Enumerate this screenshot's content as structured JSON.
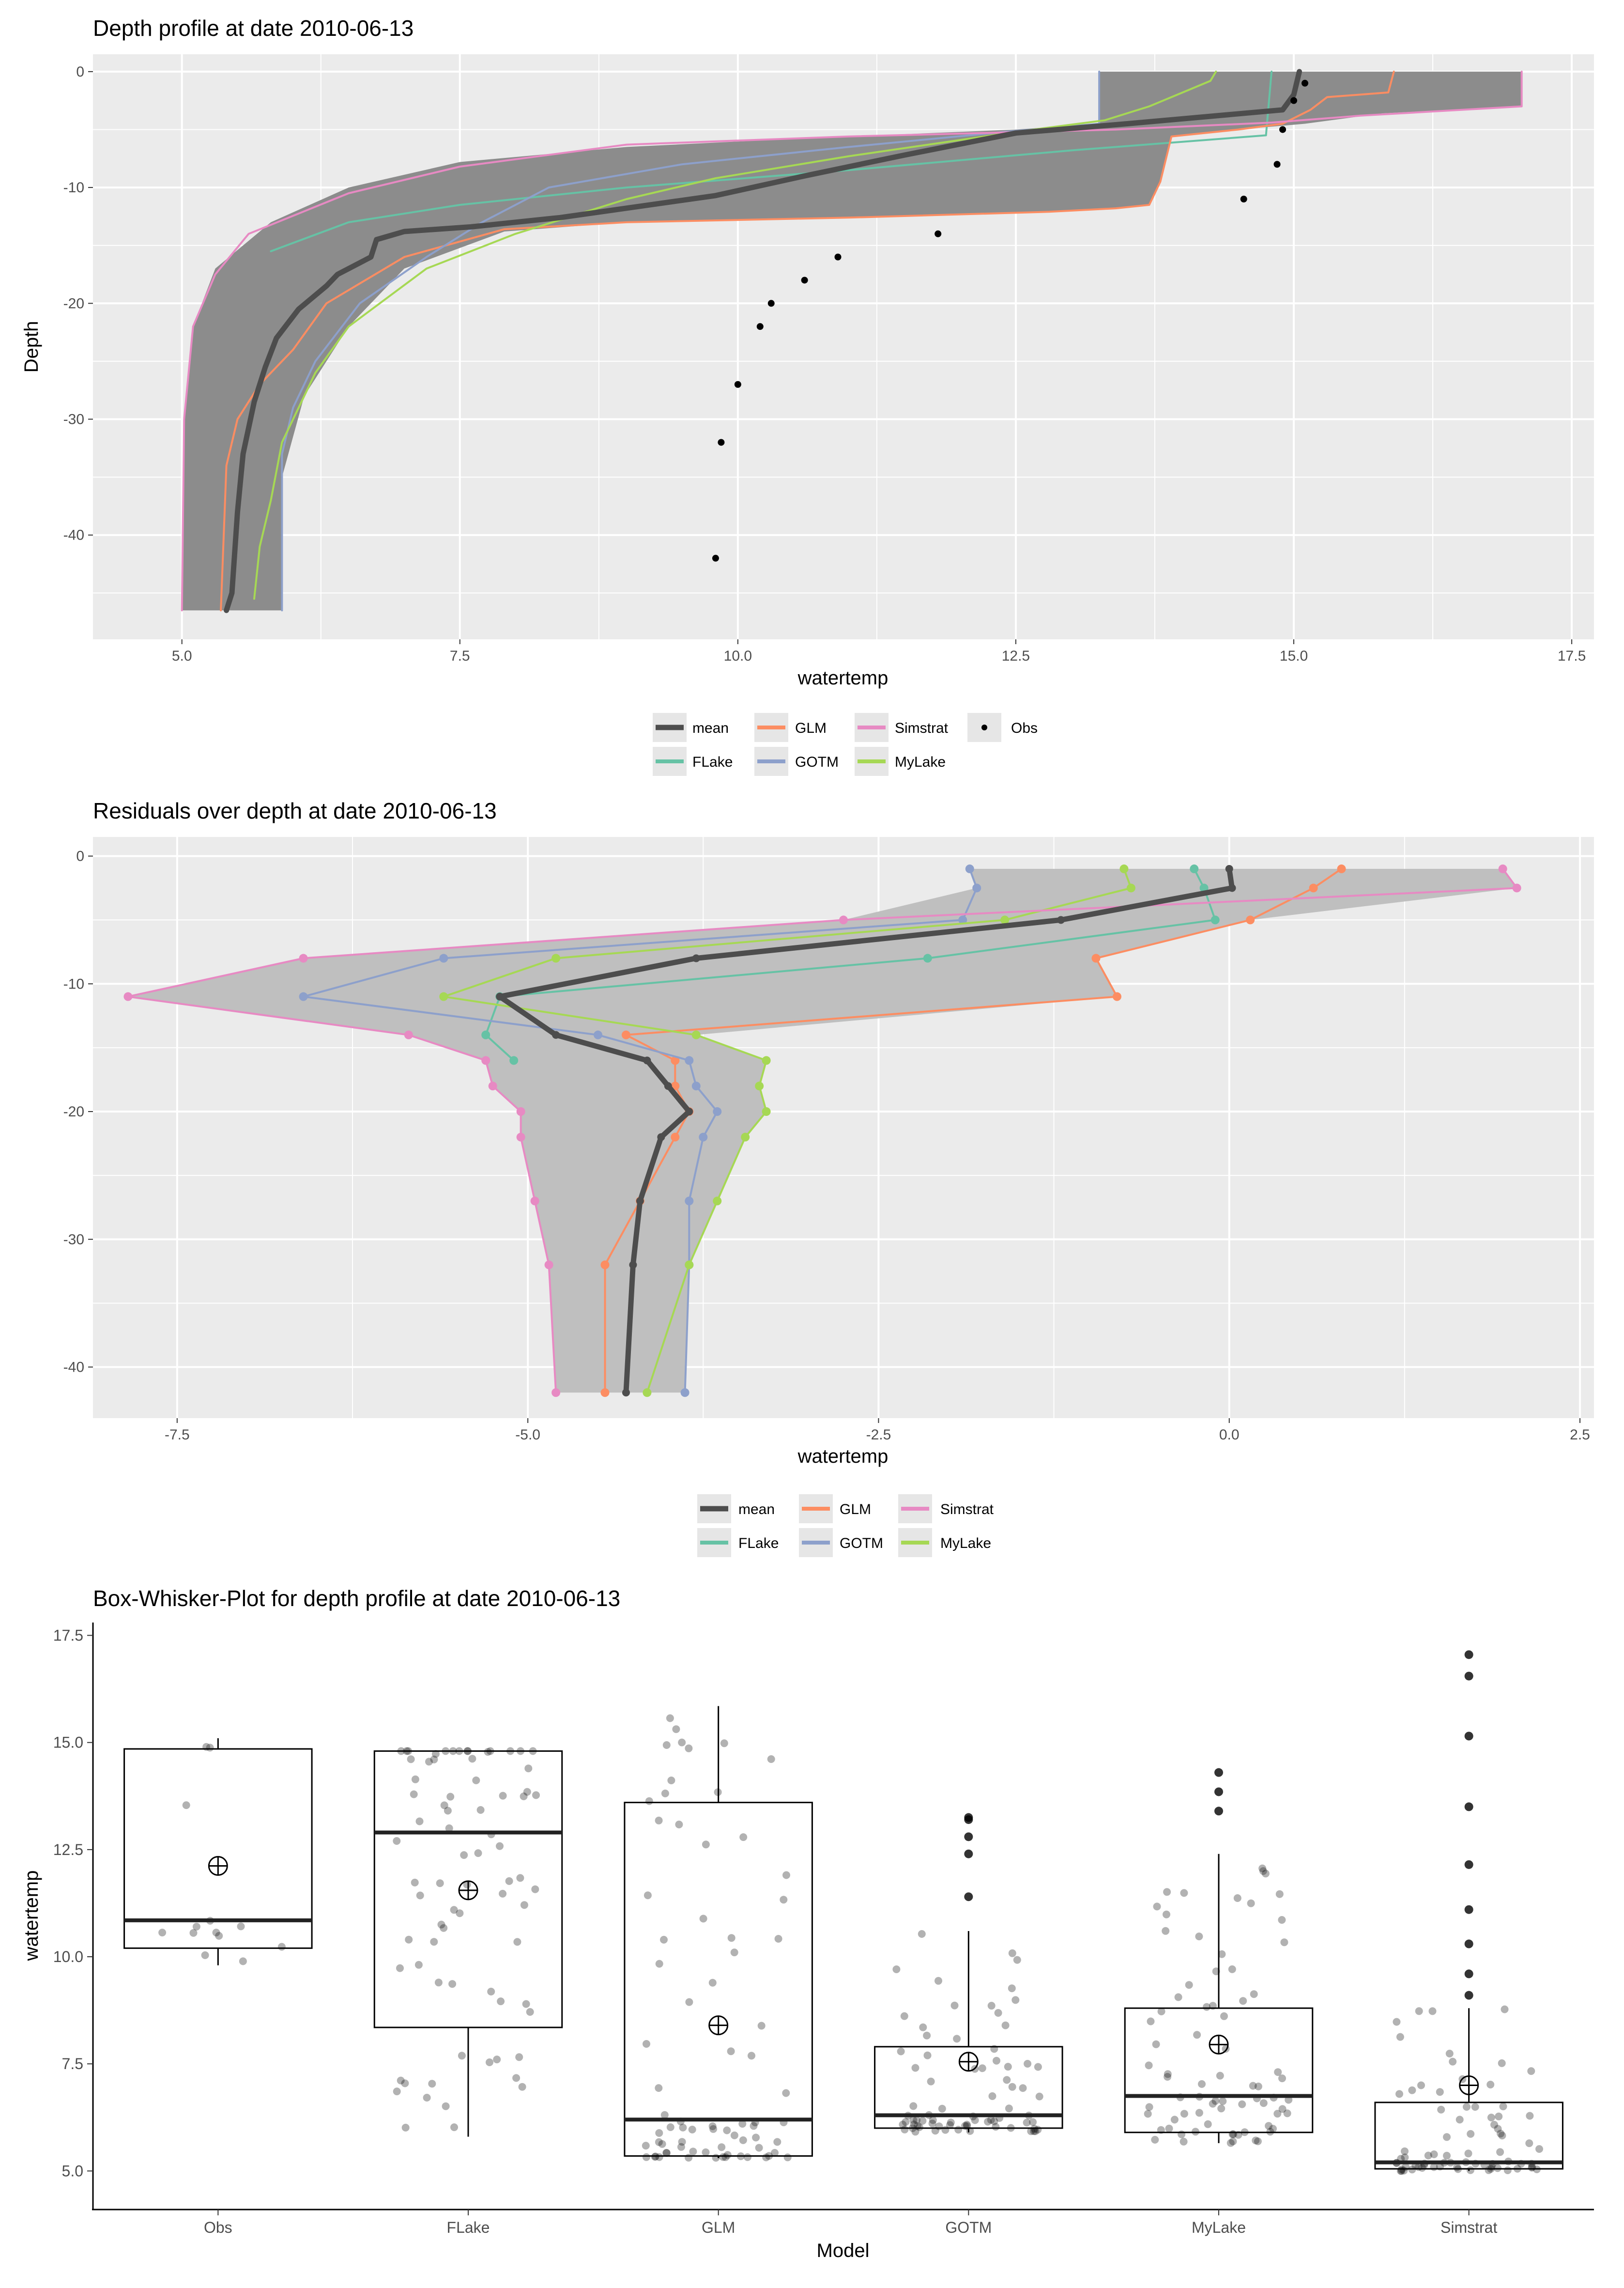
{
  "colors": {
    "mean": "#4d4d4d",
    "FLake": "#66c2a5",
    "GLM": "#fc8d62",
    "GOTM": "#8da0cb",
    "Simstrat": "#e78ac3",
    "MyLake": "#a6d854",
    "Obs": "#000000",
    "panel": "#ebebeb",
    "band": "#8c8c8c"
  },
  "legend1": {
    "mean": "mean",
    "GLM": "GLM",
    "Simstrat": "Simstrat",
    "Obs": "Obs",
    "FLake": "FLake",
    "GOTM": "GOTM",
    "MyLake": "MyLake"
  },
  "legend2": {
    "mean": "mean",
    "GLM": "GLM",
    "Simstrat": "Simstrat",
    "FLake": "FLake",
    "GOTM": "GOTM",
    "MyLake": "MyLake"
  },
  "chart_data": [
    {
      "type": "line",
      "title": "Depth profile at date 2010-06-13",
      "xlabel": "watertemp",
      "ylabel": "Depth",
      "xlim": [
        4.2,
        17.7
      ],
      "ylim": [
        -49,
        1.5
      ],
      "xticks": [
        5.0,
        7.5,
        10.0,
        12.5,
        15.0,
        17.5
      ],
      "xtick_labels": [
        "5.0",
        "7.5",
        "10.0",
        "12.5",
        "15.0",
        "17.5"
      ],
      "yticks": [
        0,
        -10,
        -20,
        -30,
        -40
      ],
      "ytick_labels": [
        "0",
        "-10",
        "-20",
        "-30",
        "-40"
      ],
      "band_min": [
        [
          13.25,
          0
        ],
        [
          13.25,
          -4.5
        ],
        [
          12.5,
          -5
        ],
        [
          10.5,
          -5.8
        ],
        [
          9,
          -6.5
        ],
        [
          7.5,
          -7.8
        ],
        [
          6.5,
          -10
        ],
        [
          5.8,
          -13
        ],
        [
          5.3,
          -17
        ],
        [
          5.1,
          -22
        ],
        [
          5.02,
          -30
        ],
        [
          5,
          -46.5
        ]
      ],
      "band_max": [
        [
          17.05,
          0
        ],
        [
          17.05,
          -3
        ],
        [
          15.8,
          -3.6
        ],
        [
          15.1,
          -4.5
        ],
        [
          14.5,
          -5
        ],
        [
          13.9,
          -5.6
        ],
        [
          13.8,
          -9.5
        ],
        [
          13.7,
          -11.5
        ],
        [
          13.4,
          -11.8
        ],
        [
          12.8,
          -12.1
        ],
        [
          11,
          -12.6
        ],
        [
          9,
          -13
        ],
        [
          7.9,
          -13.8
        ],
        [
          7,
          -17
        ],
        [
          6.5,
          -22
        ],
        [
          6.1,
          -28
        ],
        [
          5.9,
          -35
        ],
        [
          5.9,
          -46.5
        ]
      ],
      "series": [
        {
          "name": "mean",
          "points": [
            [
              15.05,
              0
            ],
            [
              15.0,
              -2
            ],
            [
              14.9,
              -3.3
            ],
            [
              13.5,
              -4.5
            ],
            [
              12.5,
              -5.3
            ],
            [
              11.5,
              -7.2
            ],
            [
              10.6,
              -9
            ],
            [
              9.8,
              -10.7
            ],
            [
              8.4,
              -12.6
            ],
            [
              7.6,
              -13.4
            ],
            [
              7.0,
              -13.8
            ],
            [
              6.75,
              -14.5
            ],
            [
              6.7,
              -16
            ],
            [
              6.6,
              -16.5
            ],
            [
              6.4,
              -17.5
            ],
            [
              6.3,
              -18.5
            ],
            [
              6.05,
              -20.5
            ],
            [
              5.85,
              -23
            ],
            [
              5.75,
              -25.5
            ],
            [
              5.65,
              -28.5
            ],
            [
              5.55,
              -33
            ],
            [
              5.5,
              -38
            ],
            [
              5.45,
              -45
            ],
            [
              5.4,
              -46.5
            ]
          ]
        },
        {
          "name": "FLake",
          "points": [
            [
              14.8,
              0
            ],
            [
              14.75,
              -5.5
            ],
            [
              13.0,
              -6.8
            ],
            [
              11.0,
              -8.5
            ],
            [
              9.0,
              -10
            ],
            [
              7.5,
              -11.5
            ],
            [
              6.5,
              -13
            ],
            [
              5.8,
              -15.5
            ]
          ]
        },
        {
          "name": "GLM",
          "points": [
            [
              15.9,
              0
            ],
            [
              15.85,
              -1.8
            ],
            [
              15.3,
              -2.2
            ],
            [
              15.15,
              -3.3
            ],
            [
              14.9,
              -4.5
            ],
            [
              14.5,
              -5
            ],
            [
              13.9,
              -5.6
            ],
            [
              13.8,
              -9.5
            ],
            [
              13.7,
              -11.5
            ],
            [
              13.4,
              -11.8
            ],
            [
              12.8,
              -12.1
            ],
            [
              11,
              -12.6
            ],
            [
              9,
              -13
            ],
            [
              7.9,
              -13.6
            ],
            [
              7,
              -16
            ],
            [
              6.3,
              -20
            ],
            [
              6.0,
              -24
            ],
            [
              5.7,
              -27
            ],
            [
              5.5,
              -30
            ],
            [
              5.4,
              -34
            ],
            [
              5.35,
              -46.5
            ]
          ]
        },
        {
          "name": "GOTM",
          "points": [
            [
              13.25,
              0
            ],
            [
              13.25,
              -4.5
            ],
            [
              12.4,
              -5.2
            ],
            [
              11.0,
              -6.5
            ],
            [
              9.5,
              -8
            ],
            [
              8.3,
              -10
            ],
            [
              7.7,
              -13
            ],
            [
              7.2,
              -16
            ],
            [
              6.6,
              -20
            ],
            [
              6.2,
              -25
            ],
            [
              6.0,
              -29
            ],
            [
              5.9,
              -33
            ],
            [
              5.9,
              -46.5
            ]
          ]
        },
        {
          "name": "MyLake",
          "points": [
            [
              14.3,
              0
            ],
            [
              14.25,
              -0.8
            ],
            [
              13.7,
              -3
            ],
            [
              13.3,
              -4.2
            ],
            [
              12.5,
              -5.2
            ],
            [
              11.0,
              -7.3
            ],
            [
              9.8,
              -9.2
            ],
            [
              9.0,
              -11
            ],
            [
              8.0,
              -14
            ],
            [
              7.2,
              -17
            ],
            [
              6.5,
              -22
            ],
            [
              6.2,
              -26
            ],
            [
              5.9,
              -32
            ],
            [
              5.8,
              -37
            ],
            [
              5.7,
              -41
            ],
            [
              5.65,
              -45.5
            ]
          ]
        },
        {
          "name": "Simstrat",
          "points": [
            [
              17.05,
              0
            ],
            [
              17.05,
              -3
            ],
            [
              15.6,
              -3.8
            ],
            [
              14.8,
              -4.4
            ],
            [
              13.4,
              -5
            ],
            [
              11,
              -5.6
            ],
            [
              9,
              -6.3
            ],
            [
              7.5,
              -8.2
            ],
            [
              6.5,
              -10.5
            ],
            [
              5.6,
              -14
            ],
            [
              5.3,
              -17.5
            ],
            [
              5.1,
              -22
            ],
            [
              5.02,
              -30
            ],
            [
              5,
              -46.5
            ]
          ]
        }
      ],
      "obs": [
        [
          15.1,
          -1
        ],
        [
          15.0,
          -2.5
        ],
        [
          14.9,
          -5
        ],
        [
          14.85,
          -8
        ],
        [
          14.55,
          -11
        ],
        [
          11.8,
          -14
        ],
        [
          10.9,
          -16
        ],
        [
          10.6,
          -18
        ],
        [
          10.3,
          -20
        ],
        [
          10.2,
          -22
        ],
        [
          10.0,
          -27
        ],
        [
          9.85,
          -32
        ],
        [
          9.8,
          -42
        ]
      ]
    },
    {
      "type": "line",
      "title": "Residuals over depth at date 2010-06-13",
      "xlabel": "watertemp",
      "xlim": [
        -8.1,
        2.6
      ],
      "ylim": [
        -44,
        1.5
      ],
      "xticks": [
        -7.5,
        -5.0,
        -2.5,
        0.0,
        2.5
      ],
      "xtick_labels": [
        "-7.5",
        "-5.0",
        "-2.5",
        "0.0",
        "2.5"
      ],
      "yticks": [
        0,
        -10,
        -20,
        -30,
        -40
      ],
      "ytick_labels": [
        "0",
        "-10",
        "-20",
        "-30",
        "-40"
      ],
      "depths": [
        -1,
        -2.5,
        -5,
        -8,
        -11,
        -14,
        -16,
        -18,
        -20,
        -22,
        -27,
        -32,
        -42
      ],
      "series": [
        {
          "name": "FLake",
          "values": [
            -0.25,
            -0.18,
            -0.1,
            -2.15,
            -5.2,
            -5.3,
            -5.1
          ]
        },
        {
          "name": "GLM",
          "values": [
            0.8,
            0.6,
            0.15,
            -0.95,
            -0.8,
            -4.3,
            -3.95,
            -3.95,
            -3.85,
            -3.95,
            -4.2,
            -4.45,
            -4.45
          ]
        },
        {
          "name": "GOTM",
          "values": [
            -1.85,
            -1.8,
            -1.9,
            -5.6,
            -6.6,
            -4.5,
            -3.85,
            -3.8,
            -3.65,
            -3.75,
            -3.85,
            -3.85,
            -3.88
          ]
        },
        {
          "name": "MyLake",
          "values": [
            -0.75,
            -0.7,
            -1.6,
            -4.8,
            -5.6,
            -3.8,
            -3.3,
            -3.35,
            -3.3,
            -3.45,
            -3.65,
            -3.85,
            -4.15
          ]
        },
        {
          "name": "Simstrat",
          "values": [
            1.95,
            2.05,
            -2.75,
            -6.6,
            -7.85,
            -5.85,
            -5.3,
            -5.25,
            -5.05,
            -5.05,
            -4.95,
            -4.85,
            -4.8
          ]
        },
        {
          "name": "mean",
          "values": [
            0.0,
            0.02,
            -1.2,
            -3.8,
            -5.2,
            -4.8,
            -4.15,
            -4.0,
            -3.85,
            -4.05,
            -4.2,
            -4.25,
            -4.3
          ]
        }
      ]
    },
    {
      "type": "box",
      "title": "Box-Whisker-Plot for depth profile at date 2010-06-13",
      "xlabel": "Model",
      "ylabel": "watertemp",
      "ylim": [
        4.1,
        17.8
      ],
      "yticks": [
        5.0,
        7.5,
        10.0,
        12.5,
        15.0,
        17.5
      ],
      "ytick_labels": [
        "5.0",
        "7.5",
        "10.0",
        "12.5",
        "15.0",
        "17.5"
      ],
      "categories": [
        "Obs",
        "FLake",
        "GLM",
        "GOTM",
        "MyLake",
        "Simstrat"
      ],
      "boxes": [
        {
          "name": "Obs",
          "whislo": 9.8,
          "q1": 10.2,
          "med": 10.85,
          "q3": 14.85,
          "whishi": 15.1,
          "mean": 12.12,
          "outliers": []
        },
        {
          "name": "FLake",
          "whislo": 5.8,
          "q1": 8.35,
          "med": 12.9,
          "q3": 14.8,
          "whishi": 14.8,
          "mean": 11.55,
          "outliers": []
        },
        {
          "name": "GLM",
          "whislo": 5.3,
          "q1": 5.35,
          "med": 6.2,
          "q3": 13.6,
          "whishi": 15.85,
          "mean": 8.4,
          "outliers": []
        },
        {
          "name": "GOTM",
          "whislo": 5.9,
          "q1": 6.0,
          "med": 6.3,
          "q3": 7.9,
          "whishi": 10.6,
          "mean": 7.55,
          "outliers": [
            11.4,
            12.4,
            12.8,
            13.2,
            13.25
          ]
        },
        {
          "name": "MyLake",
          "whislo": 5.65,
          "q1": 5.9,
          "med": 6.75,
          "q3": 8.8,
          "whishi": 12.4,
          "mean": 7.95,
          "outliers": [
            13.4,
            13.85,
            14.3
          ]
        },
        {
          "name": "Simstrat",
          "whislo": 5.0,
          "q1": 5.05,
          "med": 5.2,
          "q3": 6.6,
          "whishi": 8.8,
          "mean": 7.0,
          "outliers": [
            9.1,
            9.6,
            10.3,
            11.1,
            12.15,
            13.5,
            15.15,
            16.55,
            17.05
          ]
        }
      ]
    }
  ]
}
